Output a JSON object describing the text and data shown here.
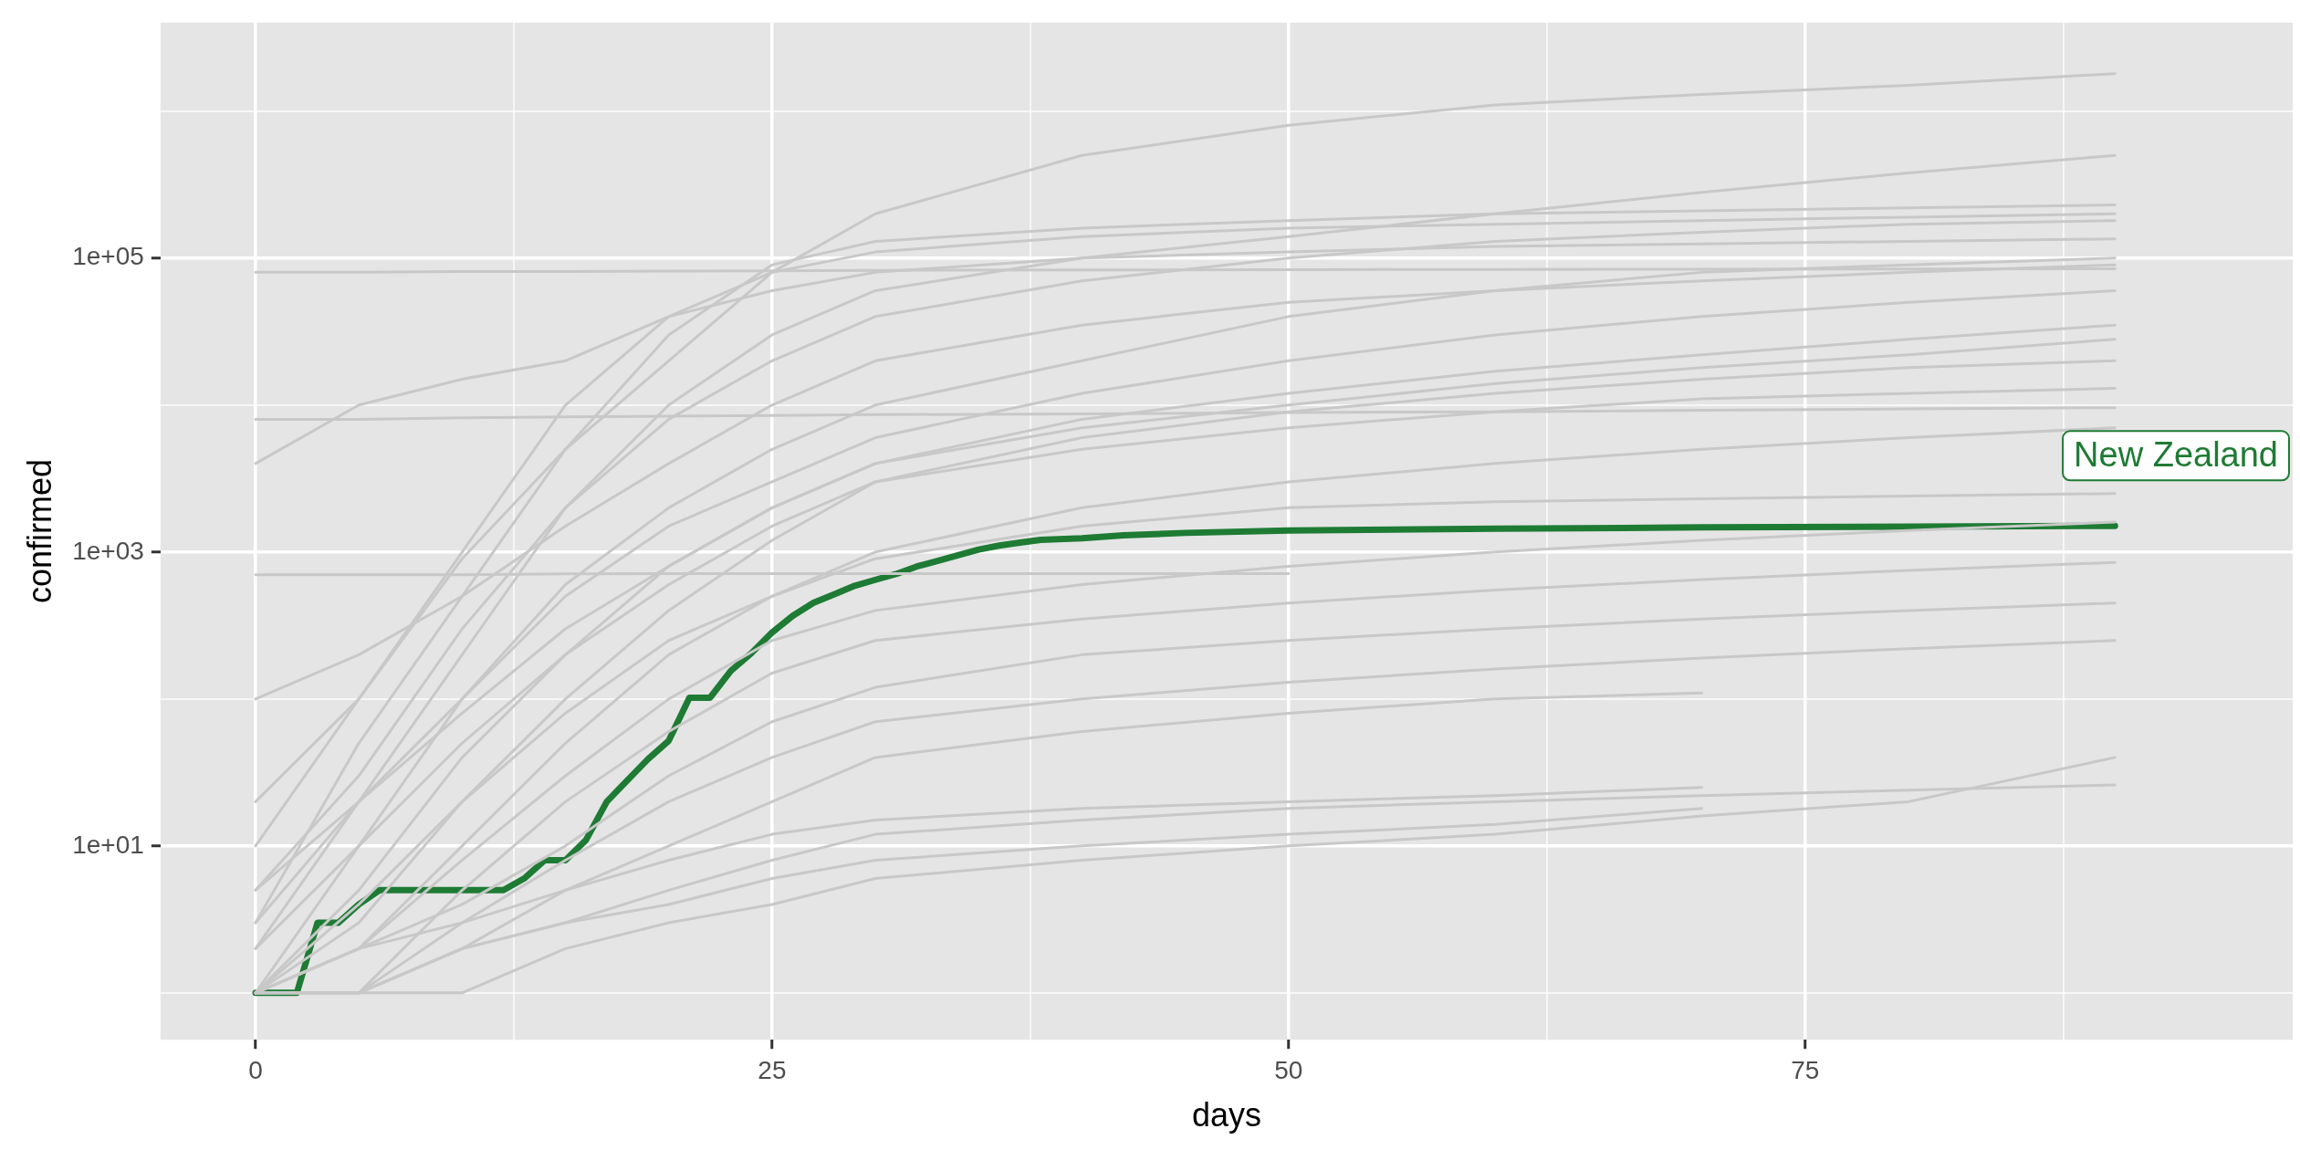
{
  "chart_data": {
    "type": "line",
    "xlabel": "days",
    "ylabel": "confirmed",
    "log": "y",
    "grid": true,
    "marker": "none",
    "line_style": "solid",
    "xlim": [
      -4.6,
      98.6
    ],
    "xticks": [
      0,
      {
        "value": 12.5,
        "label": null
      },
      25,
      {
        "value": 37.5,
        "label": null
      },
      50,
      {
        "value": 62.5,
        "label": null
      },
      75,
      {
        "value": 87.5,
        "label": null
      }
    ],
    "ylim": [
      0.48,
      4000000
    ],
    "yticks": [
      {
        "value": 1,
        "label": null
      },
      {
        "value": 10,
        "label": "1e+01"
      },
      {
        "value": 100,
        "label": null
      },
      {
        "value": 1000,
        "label": "1e+03"
      },
      {
        "value": 10000,
        "label": null
      },
      {
        "value": 100000,
        "label": "1e+05"
      },
      {
        "value": 1000000,
        "label": null
      }
    ],
    "x": [
      0,
      5,
      10,
      15,
      20,
      25,
      30,
      40,
      50,
      60,
      70,
      80,
      90
    ],
    "series": [
      {
        "color": "#c8c8c8",
        "values": [
          20,
          100,
          900,
          5000,
          20000,
          80000,
          200000,
          500000,
          800000,
          1100000,
          1300000,
          1500000,
          1800000
        ]
      },
      {
        "color": "#c8c8c8",
        "values": [
          80000,
          80000,
          81000,
          81000,
          81500,
          82000,
          82500,
          83000,
          83500,
          83800,
          84000,
          84200,
          84500
        ]
      },
      {
        "color": "#c8c8c8",
        "values": [
          8000,
          8000,
          8200,
          8300,
          8400,
          8500,
          8600,
          8700,
          8900,
          9000,
          9200,
          9400,
          9600
        ]
      },
      {
        "color": "#c8c8c8",
        "values": [
          700,
          700,
          700,
          710,
          712,
          712,
          712,
          712,
          712,
          null,
          null,
          null,
          null
        ]
      },
      {
        "color": "#c8c8c8",
        "values": [
          3,
          50,
          500,
          5000,
          30000,
          90000,
          130000,
          160000,
          180000,
          200000,
          210000,
          220000,
          230000
        ]
      },
      {
        "color": "#c8c8c8",
        "values": [
          10,
          100,
          1000,
          10000,
          40000,
          80000,
          110000,
          140000,
          160000,
          170000,
          180000,
          190000,
          200000
        ]
      },
      {
        "color": "#c8c8c8",
        "values": [
          2,
          20,
          200,
          2000,
          10000,
          30000,
          60000,
          100000,
          140000,
          200000,
          280000,
          380000,
          500000
        ]
      },
      {
        "color": "#c8c8c8",
        "values": [
          5,
          30,
          300,
          2000,
          8000,
          20000,
          40000,
          70000,
          100000,
          130000,
          150000,
          170000,
          180000
        ]
      },
      {
        "color": "#c8c8c8",
        "values": [
          1,
          10,
          100,
          600,
          2000,
          5000,
          10000,
          20000,
          40000,
          60000,
          80000,
          90000,
          100000
        ]
      },
      {
        "color": "#c8c8c8",
        "values": [
          3,
          20,
          100,
          500,
          1500,
          3000,
          6000,
          12000,
          20000,
          30000,
          40000,
          50000,
          60000
        ]
      },
      {
        "color": "#c8c8c8",
        "values": [
          1,
          5,
          40,
          200,
          800,
          2000,
          4000,
          8000,
          12000,
          17000,
          22000,
          28000,
          35000
        ]
      },
      {
        "color": "#c8c8c8",
        "values": [
          1,
          3,
          20,
          100,
          400,
          1200,
          3000,
          6000,
          9000,
          12000,
          15000,
          18000,
          20000
        ]
      },
      {
        "color": "#c8c8c8",
        "values": [
          2,
          10,
          50,
          200,
          600,
          1500,
          3000,
          5000,
          7000,
          9000,
          11000,
          12000,
          13000
        ]
      },
      {
        "color": "#c8c8c8",
        "values": [
          1,
          2,
          10,
          50,
          200,
          500,
          1000,
          2000,
          3000,
          4000,
          5000,
          6000,
          7000
        ]
      },
      {
        "color": "#c8c8c8",
        "values": [
          1,
          4,
          20,
          80,
          250,
          500,
          900,
          1500,
          2000,
          2200,
          2300,
          2400,
          2500
        ]
      },
      {
        "color": "#c8c8c8",
        "values": [
          1,
          2,
          8,
          30,
          100,
          250,
          400,
          600,
          800,
          1000,
          1200,
          1400,
          1600
        ]
      },
      {
        "color": "#c8c8c8",
        "values": [
          1,
          1,
          5,
          20,
          60,
          150,
          250,
          350,
          450,
          550,
          650,
          750,
          850
        ]
      },
      {
        "color": "#c8c8c8",
        "values": [
          1,
          2,
          4,
          10,
          30,
          70,
          120,
          200,
          250,
          300,
          350,
          400,
          450
        ]
      },
      {
        "color": "#c8c8c8",
        "values": [
          1,
          1,
          3,
          8,
          20,
          40,
          70,
          100,
          130,
          160,
          190,
          220,
          250
        ]
      },
      {
        "color": "#c8c8c8",
        "values": [
          1,
          1,
          2,
          5,
          10,
          20,
          40,
          60,
          80,
          100,
          110,
          null,
          null
        ]
      },
      {
        "color": "#c8c8c8",
        "values": [
          1,
          2,
          3,
          5,
          8,
          12,
          15,
          18,
          20,
          22,
          25,
          null,
          null
        ]
      },
      {
        "color": "#c8c8c8",
        "values": [
          1,
          1,
          2,
          3,
          4,
          6,
          8,
          10,
          12,
          14,
          18,
          null,
          null
        ]
      },
      {
        "color": "#c8c8c8",
        "values": [
          1,
          1,
          1,
          2,
          3,
          4,
          6,
          8,
          10,
          12,
          16,
          20,
          40
        ]
      },
      {
        "color": "#c8c8c8",
        "values": [
          1,
          1,
          2,
          3,
          5,
          8,
          12,
          15,
          18,
          20,
          22,
          24,
          26
        ]
      },
      {
        "color": "#c8c8c8",
        "values": [
          5,
          20,
          80,
          300,
          800,
          2000,
          4000,
          7000,
          10000,
          14000,
          18000,
          22000,
          28000
        ]
      },
      {
        "color": "#c8c8c8",
        "values": [
          100,
          200,
          500,
          1500,
          4000,
          10000,
          20000,
          35000,
          50000,
          60000,
          70000,
          80000,
          90000
        ]
      },
      {
        "color": "#c8c8c8",
        "values": [
          4000,
          10000,
          15000,
          20000,
          40000,
          60000,
          80000,
          100000,
          110000,
          120000,
          125000,
          130000,
          135000
        ]
      },
      {
        "color": "#1e7b34",
        "x": [
          0,
          1,
          2,
          3,
          4,
          5,
          6,
          7,
          8,
          9,
          10,
          11,
          12,
          13,
          14,
          15,
          16,
          17,
          18,
          19,
          20,
          21,
          22,
          23,
          24,
          25,
          26,
          27,
          28,
          29,
          30,
          31,
          32,
          33,
          34,
          35,
          36,
          37,
          38,
          40,
          42,
          45,
          50,
          60,
          70,
          80,
          90
        ],
        "values": [
          1,
          1,
          1,
          3,
          3,
          4,
          5,
          5,
          5,
          5,
          5,
          5,
          5,
          6,
          8,
          8,
          11,
          20,
          28,
          39,
          52,
          102,
          102,
          155,
          205,
          283,
          368,
          451,
          514,
          589,
          647,
          708,
          797,
          868,
          950,
          1039,
          1106,
          1160,
          1210,
          1239,
          1300,
          1349,
          1400,
          1440,
          1470,
          1490,
          1504
        ]
      }
    ],
    "annotations": [
      "New Zealand"
    ]
  }
}
